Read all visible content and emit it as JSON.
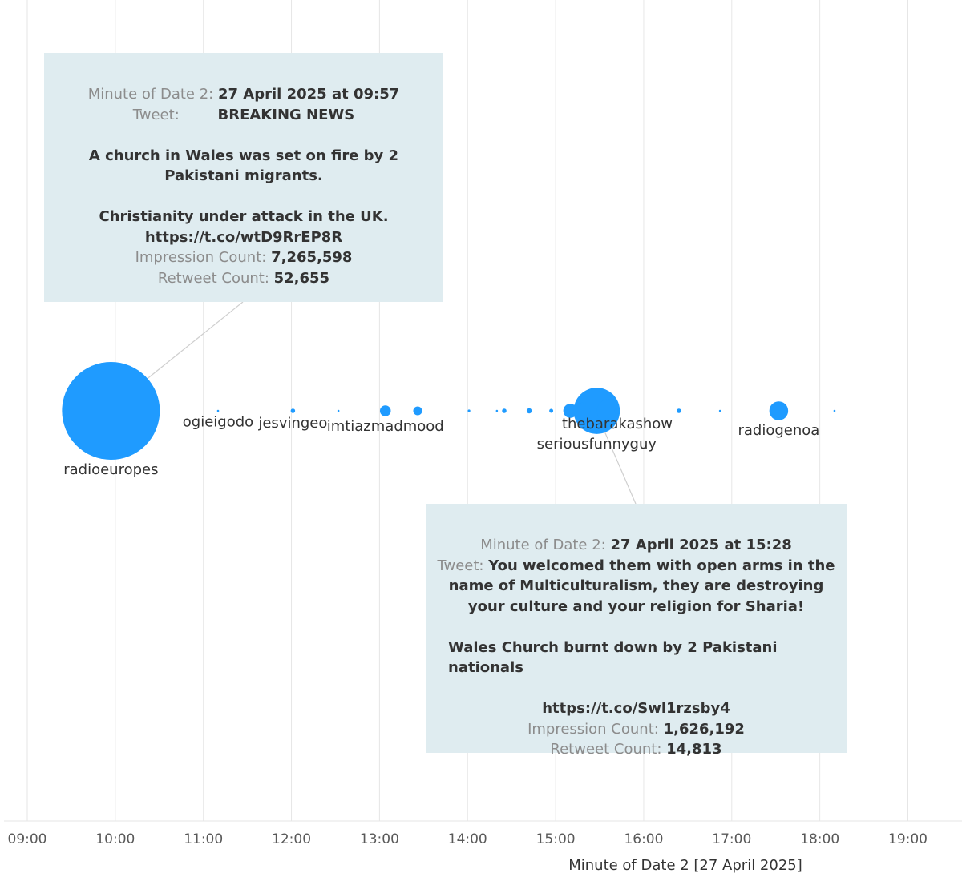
{
  "chart_data": {
    "type": "scatter",
    "xlabel": "Minute of Date 2 [27 April 2025]",
    "x_ticks": [
      "09:00",
      "10:00",
      "11:00",
      "12:00",
      "13:00",
      "14:00",
      "15:00",
      "16:00",
      "17:00",
      "18:00",
      "19:00"
    ],
    "xlim": [
      "09:00",
      "19:00"
    ],
    "grid": "vertical",
    "color": "#1f9bff",
    "points": [
      {
        "x": "09:57",
        "impressions": 7265598,
        "label": "radioeuropes"
      },
      {
        "x": "11:10",
        "impressions": 1000,
        "label": "ogieigodo"
      },
      {
        "x": "12:01",
        "impressions": 15000,
        "label": "jesvingeo"
      },
      {
        "x": "12:32",
        "impressions": 1000,
        "label": ""
      },
      {
        "x": "13:04",
        "impressions": 90000,
        "label": "imtiazmadmood"
      },
      {
        "x": "13:26",
        "impressions": 60000,
        "label": ""
      },
      {
        "x": "14:01",
        "impressions": 5000,
        "label": ""
      },
      {
        "x": "14:20",
        "impressions": 1000,
        "label": ""
      },
      {
        "x": "14:25",
        "impressions": 15000,
        "label": ""
      },
      {
        "x": "14:42",
        "impressions": 20000,
        "label": ""
      },
      {
        "x": "14:57",
        "impressions": 12000,
        "label": ""
      },
      {
        "x": "15:10",
        "impressions": 150000,
        "label": ""
      },
      {
        "x": "15:18",
        "impressions": 200000,
        "label": ""
      },
      {
        "x": "15:28",
        "impressions": 1626192,
        "label": "seriousfunnyguy"
      },
      {
        "x": "15:36",
        "impressions": 400000,
        "label": ""
      },
      {
        "x": "15:42",
        "impressions": 30000,
        "label": "thebarakashow"
      },
      {
        "x": "16:24",
        "impressions": 15000,
        "label": ""
      },
      {
        "x": "16:52",
        "impressions": 1000,
        "label": ""
      },
      {
        "x": "17:32",
        "impressions": 270000,
        "label": "radiogenoa"
      },
      {
        "x": "18:10",
        "impressions": 1000,
        "label": ""
      }
    ]
  },
  "tooltips": [
    {
      "date_key": "Minute of Date 2:",
      "date_val": "27 April 2025 at 09:57",
      "tweet_key": "Tweet:",
      "tweet_heading": "BREAKING NEWS",
      "tweet_line1": "A church in Wales was set on fire by 2 Pakistani migrants.",
      "tweet_line2": "Christianity under attack in the UK.",
      "tweet_link": "https://t.co/wtD9RrEP8R",
      "impr_key": "Impression Count:",
      "impr_val": "7,265,598",
      "rt_key": "Retweet Count:",
      "rt_val": "52,655"
    },
    {
      "date_key": "Minute of Date 2:",
      "date_val": "27 April 2025 at 15:28",
      "tweet_key": "Tweet:",
      "tweet_text": "You welcomed them with open arms in the name of Multiculturalism, they are destroying your culture and your religion for Sharia!",
      "tweet_line2": "Wales Church burnt down by 2 Pakistani nationals",
      "tweet_link": "https://t.co/Swl1rzsby4",
      "impr_key": "Impression Count:",
      "impr_val": "1,626,192",
      "rt_key": "Retweet Count:",
      "rt_val": "14,813"
    }
  ]
}
